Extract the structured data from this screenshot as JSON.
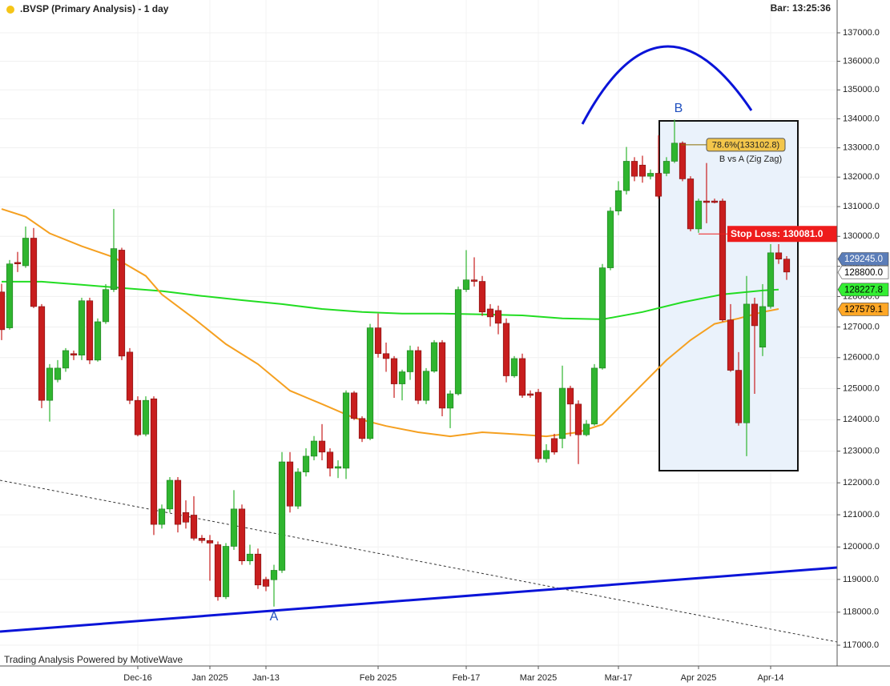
{
  "chart_data": {
    "type": "candlestick",
    "title": ".BVSP (Primary Analysis) - 1 day",
    "bar_time": "Bar: 13:25:36",
    "footer": "Trading Analysis Powered by MotiveWave",
    "wave_labels": [
      "A",
      "B"
    ],
    "pattern_label": "B vs A (Zig Zag)",
    "log_scale": true,
    "grid": true,
    "up_color": "#2fb52f",
    "down_color": "#c81e1e",
    "ylim": [
      116375,
      138164
    ],
    "yticks": [
      {
        "value": 117000,
        "label": "117000.0"
      },
      {
        "value": 118000,
        "label": "118000.0"
      },
      {
        "value": 119000,
        "label": "119000.0"
      },
      {
        "value": 120000,
        "label": "120000.0"
      },
      {
        "value": 121000,
        "label": "121000.0"
      },
      {
        "value": 122000,
        "label": "122000.0"
      },
      {
        "value": 123000,
        "label": "123000.0"
      },
      {
        "value": 124000,
        "label": "124000.0"
      },
      {
        "value": 125000,
        "label": "125000.0"
      },
      {
        "value": 126000,
        "label": "126000.0"
      },
      {
        "value": 127000,
        "label": "127000.0"
      },
      {
        "value": 128000,
        "label": "128000.0"
      },
      {
        "value": 129000,
        "label": "129000.0"
      },
      {
        "value": 130000,
        "label": "130000.0"
      },
      {
        "value": 131000,
        "label": "131000.0"
      },
      {
        "value": 132000,
        "label": "132000.0"
      },
      {
        "value": 133000,
        "label": "133000.0"
      },
      {
        "value": 134000,
        "label": "134000.0"
      },
      {
        "value": 135000,
        "label": "135000.0"
      },
      {
        "value": 136000,
        "label": "136000.0"
      },
      {
        "value": 137000,
        "label": "137000.0"
      }
    ],
    "xlim": [
      -0.2,
      104.3
    ],
    "xticks": [
      {
        "value": 17,
        "label": "Dec-16"
      },
      {
        "value": 26,
        "label": "Jan 2025"
      },
      {
        "value": 33,
        "label": "Jan-13"
      },
      {
        "value": 47,
        "label": "Feb 2025"
      },
      {
        "value": 58,
        "label": "Feb-17"
      },
      {
        "value": 67,
        "label": "Mar 2025"
      },
      {
        "value": 77,
        "label": "Mar-17"
      },
      {
        "value": 87,
        "label": "Apr 2025"
      },
      {
        "value": 96,
        "label": "Apr-14"
      }
    ],
    "open": [
      128150,
      126970,
      129130,
      129020,
      129940,
      127670,
      124620,
      125290,
      125660,
      126130,
      126080,
      127860,
      125920,
      127170,
      128230,
      129540,
      126180,
      124620,
      123540,
      124670,
      120700,
      121180,
      122080,
      121070,
      120990,
      120270,
      120200,
      120070,
      118470,
      120020,
      121180,
      119570,
      119780,
      119000,
      118990,
      119280,
      122660,
      121270,
      122340,
      122840,
      123320,
      122970,
      122460,
      122460,
      124860,
      124040,
      123400,
      126970,
      126130,
      125970,
      125150,
      125540,
      126230,
      124620,
      125560,
      126490,
      124370,
      124830,
      128230,
      128550,
      128500,
      127590,
      127540,
      127120,
      125410,
      125970,
      124830,
      124880,
      122760,
      123400,
      123400,
      125010,
      124500,
      123520,
      123860,
      125660,
      128950,
      130850,
      131540,
      132540,
      132410,
      132030,
      132130,
      132130,
      132540,
      133160,
      131940,
      130250,
      131190,
      131190,
      131190,
      127230,
      125590,
      123900,
      127750,
      126340,
      127670,
      129450,
      129240
    ],
    "high": [
      128420,
      129210,
      129480,
      130330,
      130280,
      127750,
      125790,
      125920,
      126310,
      126230,
      127960,
      127960,
      127280,
      128410,
      130920,
      129620,
      126310,
      124750,
      124750,
      124750,
      121320,
      122180,
      122180,
      121450,
      121580,
      120370,
      120370,
      120170,
      120120,
      121770,
      121320,
      120070,
      119950,
      119080,
      119450,
      122970,
      122970,
      122460,
      123090,
      123480,
      123860,
      123090,
      122710,
      124940,
      124920,
      124110,
      127100,
      127440,
      126490,
      126050,
      125610,
      126390,
      126360,
      125660,
      126570,
      126570,
      124940,
      128330,
      129540,
      129300,
      128680,
      127750,
      127700,
      127280,
      126050,
      126130,
      124940,
      124990,
      123220,
      123550,
      125740,
      125090,
      124620,
      123990,
      125790,
      129080,
      130980,
      131860,
      133030,
      132680,
      132730,
      132260,
      133430,
      132680,
      133970,
      133220,
      132030,
      131270,
      132480,
      131270,
      131270,
      127750,
      126180,
      128680,
      127960,
      128410,
      129740,
      129740,
      129340
    ],
    "low": [
      126570,
      126910,
      128810,
      128950,
      127620,
      124370,
      123940,
      125200,
      125540,
      125920,
      125920,
      125790,
      125870,
      127100,
      128150,
      125920,
      124500,
      123470,
      123470,
      120370,
      120570,
      121070,
      120450,
      120570,
      120200,
      120120,
      118960,
      118350,
      118400,
      119910,
      119450,
      119450,
      118710,
      118640,
      118170,
      119200,
      121070,
      121180,
      122200,
      122710,
      122710,
      122200,
      122150,
      122120,
      123990,
      123290,
      123350,
      126000,
      125540,
      124700,
      124620,
      125280,
      124500,
      124500,
      125510,
      124110,
      123730,
      124780,
      128150,
      128330,
      127360,
      127020,
      126760,
      125200,
      125350,
      124700,
      124700,
      122640,
      122640,
      122890,
      123090,
      123470,
      122590,
      123470,
      123810,
      125610,
      128870,
      130710,
      131410,
      131860,
      131810,
      131920,
      131270,
      132030,
      132480,
      131860,
      130170,
      130120,
      130440,
      131110,
      127170,
      125540,
      123810,
      122840,
      124830,
      126050,
      127600,
      129080,
      128550
    ],
    "close": [
      126910,
      129080,
      129080,
      129940,
      127670,
      124620,
      125660,
      125660,
      126230,
      126080,
      127860,
      125920,
      127170,
      128230,
      129590,
      126050,
      124620,
      123520,
      124620,
      120700,
      121180,
      122080,
      120700,
      120770,
      120270,
      120200,
      120120,
      118470,
      120020,
      121180,
      119570,
      119780,
      118830,
      118790,
      119280,
      122660,
      121270,
      122340,
      122840,
      123320,
      122970,
      122460,
      122510,
      124860,
      124040,
      123400,
      126970,
      126130,
      125970,
      125150,
      125540,
      126230,
      124620,
      125560,
      126490,
      124370,
      124830,
      128230,
      128550,
      128500,
      127490,
      127330,
      127120,
      125410,
      125970,
      124780,
      124780,
      122760,
      123020,
      122970,
      125010,
      124500,
      123520,
      123860,
      125660,
      128950,
      130850,
      131540,
      132540,
      132030,
      132030,
      132130,
      131350,
      132540,
      133160,
      131940,
      130250,
      131190,
      131140,
      131140,
      127230,
      125590,
      123900,
      127750,
      127040,
      127670,
      129450,
      129240,
      128810
    ],
    "lines": [
      {
        "color": "#22dd22",
        "x": [
          0,
          5,
          10,
          15,
          20,
          25,
          30,
          35,
          40,
          45,
          50,
          55,
          60,
          65,
          70,
          75,
          80,
          85,
          90,
          95,
          97
        ],
        "values": [
          128490,
          128490,
          128390,
          128280,
          128180,
          128020,
          127880,
          127750,
          127590,
          127490,
          127440,
          127440,
          127410,
          127380,
          127280,
          127250,
          127490,
          127810,
          128070,
          128200,
          128230
        ]
      },
      {
        "color": "#f5a020",
        "x": [
          0,
          3,
          6,
          10,
          14,
          18,
          20,
          24,
          28,
          32,
          36,
          40,
          44,
          48,
          52,
          56,
          60,
          64,
          68,
          72,
          75,
          79,
          83,
          86,
          89,
          92,
          95,
          97
        ],
        "values": [
          130920,
          130660,
          130100,
          129670,
          129300,
          128680,
          128070,
          127280,
          126440,
          125790,
          124930,
          124500,
          124060,
          123800,
          123600,
          123470,
          123600,
          123540,
          123470,
          123600,
          123850,
          124880,
          125920,
          126570,
          127100,
          127280,
          127490,
          127590
        ]
      }
    ],
    "price_markers": [
      {
        "value": 129245,
        "label": "129245.0",
        "color": "#5b7db8",
        "text_color": "#ffffff"
      },
      {
        "value": 128800,
        "label": "128800.0",
        "color": "#ffffff",
        "text_color": "#000000"
      },
      {
        "value": 128227.8,
        "label": "128227.8",
        "color": "#33ee33",
        "text_color": "#000000"
      },
      {
        "value": 127579.1,
        "label": "127579.1",
        "color": "#ffa726",
        "text_color": "#000000"
      }
    ],
    "stop_loss": {
      "value": 130081,
      "label": "Stop Loss: 130081.0",
      "color": "#ee1c1c"
    },
    "fib_level": {
      "value": 133102.8,
      "label": "78.6%(133102.8)",
      "color": "#f3c64b"
    }
  }
}
